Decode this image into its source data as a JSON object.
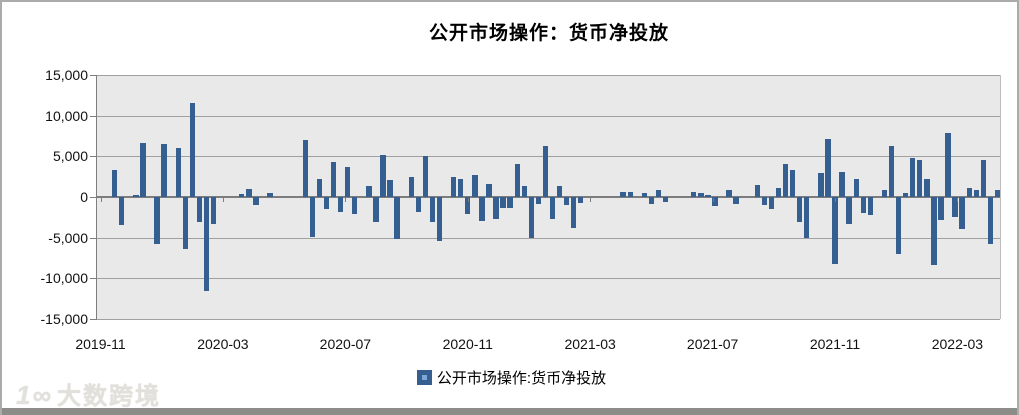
{
  "title": "公开市场操作：货币净投放",
  "legend": {
    "label": "公开市场操作:货币净投放",
    "marker_color": "#365f91"
  },
  "watermark": {
    "logo": "1∞",
    "text": "大数跨境"
  },
  "colors": {
    "bar": "#365f91",
    "plot_background": "#e9e9e9",
    "gridline": "#a0a0a0",
    "zero_line": "#7c7c7c",
    "bottom_strip": "#8c8c88"
  },
  "chart_data": {
    "type": "bar",
    "title": "公开市场操作：货币净投放",
    "series_name": "公开市场操作:货币净投放",
    "frequency": "weekly",
    "x_range": [
      "2019-11",
      "2022-04"
    ],
    "ylim": [
      -15000,
      15000
    ],
    "ytick_labels": [
      "15,000",
      "10,000",
      "5,000",
      "0",
      "-5,000",
      "-10,000",
      "-15,000"
    ],
    "xtick_labels": [
      "2019-11",
      "2020-03",
      "2020-07",
      "2020-11",
      "2021-03",
      "2021-07",
      "2021-11",
      "2022-03"
    ],
    "xtick_slots": [
      0,
      17.33,
      34.67,
      52,
      69.33,
      86.67,
      104,
      121.33
    ],
    "n_slots": 128,
    "grid": true,
    "legend_position": "bottom",
    "values": [
      0,
      0,
      3300,
      -3500,
      0,
      250,
      6600,
      0,
      -5800,
      6500,
      0,
      6000,
      -6400,
      11500,
      -3100,
      -11500,
      -3300,
      0,
      0,
      0,
      400,
      1000,
      -1000,
      0,
      500,
      0,
      0,
      0,
      0,
      7000,
      -4900,
      2200,
      -1500,
      4300,
      -1900,
      3700,
      -2100,
      0,
      1400,
      -3100,
      5200,
      2100,
      -5200,
      0,
      2400,
      -1800,
      5000,
      -3100,
      -5400,
      0,
      2500,
      2200,
      -2100,
      2700,
      -3000,
      1600,
      -2700,
      -1300,
      -1400,
      4000,
      1400,
      -5000,
      -900,
      6300,
      -2700,
      1400,
      -1000,
      -3800,
      -700,
      0,
      0,
      0,
      0,
      0,
      600,
      600,
      0,
      500,
      -900,
      900,
      -600,
      0,
      0,
      0,
      600,
      500,
      300,
      -1100,
      0,
      800,
      -900,
      0,
      0,
      1500,
      -1000,
      -1500,
      1100,
      4100,
      3300,
      -3100,
      -5000,
      0,
      3000,
      7100,
      -8200,
      3100,
      -3300,
      2200,
      -2000,
      -2200,
      0,
      800,
      6300,
      -7000,
      500,
      4800,
      4500,
      2200,
      -8400,
      -2800,
      7900,
      -2400,
      -3900,
      1100,
      900,
      4500,
      -5800,
      800
    ]
  }
}
